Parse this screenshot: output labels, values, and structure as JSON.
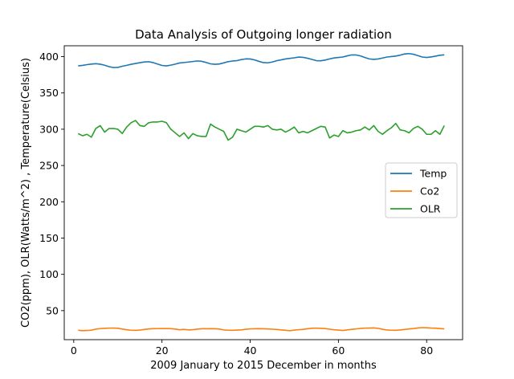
{
  "chart_data": {
    "type": "line",
    "title": "Data Analysis of Outgoing longer radiation",
    "xlabel": "2009 January to 2015 December in months",
    "ylabel": "CO2(ppm), OLR(Watts/m^2) , Temperature(Celsius)",
    "xlim": [
      -2.15,
      88.15
    ],
    "ylim": [
      10,
      415
    ],
    "xticks": [
      0,
      20,
      40,
      60,
      80
    ],
    "yticks": [
      50,
      100,
      150,
      200,
      250,
      300,
      350,
      400
    ],
    "grid": false,
    "legend_position": "center-right",
    "series": [
      {
        "name": "Temp",
        "color": "#1f77b4",
        "x": [
          1,
          2,
          3,
          4,
          5,
          6,
          7,
          8,
          9,
          10,
          11,
          12,
          13,
          14,
          15,
          16,
          17,
          18,
          19,
          20,
          21,
          22,
          23,
          24,
          25,
          26,
          27,
          28,
          29,
          30,
          31,
          32,
          33,
          34,
          35,
          36,
          37,
          38,
          39,
          40,
          41,
          42,
          43,
          44,
          45,
          46,
          47,
          48,
          49,
          50,
          51,
          52,
          53,
          54,
          55,
          56,
          57,
          58,
          59,
          60,
          61,
          62,
          63,
          64,
          65,
          66,
          67,
          68,
          69,
          70,
          71,
          72,
          73,
          74,
          75,
          76,
          77,
          78,
          79,
          80,
          81,
          82,
          83,
          84
        ],
        "values": [
          387.3,
          388.0,
          389.0,
          389.8,
          390.3,
          389.6,
          388.2,
          386.2,
          385.0,
          385.2,
          386.8,
          388.0,
          389.5,
          390.6,
          391.7,
          392.7,
          393.0,
          391.8,
          389.8,
          387.9,
          387.3,
          388.3,
          389.7,
          391.3,
          391.9,
          392.6,
          393.3,
          394.1,
          393.6,
          392.0,
          390.1,
          389.5,
          389.9,
          391.4,
          393.1,
          394.0,
          394.5,
          396.0,
          396.9,
          396.8,
          395.5,
          393.5,
          391.8,
          391.5,
          392.6,
          394.4,
          395.6,
          396.8,
          397.6,
          398.4,
          399.4,
          399.0,
          397.8,
          396.2,
          394.5,
          394.3,
          395.3,
          396.9,
          398.2,
          398.9,
          399.5,
          401.1,
          402.4,
          402.3,
          401.0,
          398.8,
          396.9,
          396.3,
          396.8,
          398.1,
          399.5,
          400.1,
          400.8,
          402.1,
          403.7,
          404.2,
          403.3,
          401.4,
          399.5,
          398.9,
          399.6,
          400.7,
          401.9,
          402.5
        ]
      },
      {
        "name": "Co2",
        "color": "#ff7f0e",
        "x": [
          1,
          2,
          3,
          4,
          5,
          6,
          7,
          8,
          9,
          10,
          11,
          12,
          13,
          14,
          15,
          16,
          17,
          18,
          19,
          20,
          21,
          22,
          23,
          24,
          25,
          26,
          27,
          28,
          29,
          30,
          31,
          32,
          33,
          34,
          35,
          36,
          37,
          38,
          39,
          40,
          41,
          42,
          43,
          44,
          45,
          46,
          47,
          48,
          49,
          50,
          51,
          52,
          53,
          54,
          55,
          56,
          57,
          58,
          59,
          60,
          61,
          62,
          63,
          64,
          65,
          66,
          67,
          68,
          69,
          70,
          71,
          72,
          73,
          74,
          75,
          76,
          77,
          78,
          79,
          80,
          81,
          82,
          83,
          84
        ],
        "values": [
          22.9,
          22.4,
          22.6,
          23.1,
          24.5,
          25.2,
          25.6,
          25.9,
          26.0,
          25.7,
          24.6,
          23.6,
          23.0,
          22.8,
          23.2,
          24.0,
          24.7,
          25.1,
          25.2,
          25.3,
          25.3,
          25.1,
          24.6,
          23.6,
          24.2,
          23.4,
          23.8,
          24.5,
          25.0,
          25.0,
          25.1,
          25.0,
          24.6,
          23.4,
          23.0,
          22.9,
          23.2,
          23.5,
          24.3,
          24.8,
          25.0,
          25.1,
          25.0,
          24.7,
          24.4,
          24.0,
          23.5,
          22.9,
          22.3,
          23.2,
          23.7,
          24.2,
          25.0,
          25.7,
          25.9,
          25.6,
          25.3,
          24.4,
          23.6,
          23.2,
          22.7,
          23.5,
          24.2,
          24.8,
          25.4,
          25.9,
          26.0,
          26.2,
          25.6,
          24.3,
          23.3,
          23.0,
          22.9,
          23.3,
          24.0,
          24.7,
          25.3,
          26.1,
          26.6,
          26.4,
          26.0,
          25.8,
          25.3,
          24.9
        ]
      },
      {
        "name": "OLR",
        "color": "#2ca02c",
        "x": [
          1,
          2,
          3,
          4,
          5,
          6,
          7,
          8,
          9,
          10,
          11,
          12,
          13,
          14,
          15,
          16,
          17,
          18,
          19,
          20,
          21,
          22,
          23,
          24,
          25,
          26,
          27,
          28,
          29,
          30,
          31,
          32,
          33,
          34,
          35,
          36,
          37,
          38,
          39,
          40,
          41,
          42,
          43,
          44,
          45,
          46,
          47,
          48,
          49,
          50,
          51,
          52,
          53,
          54,
          55,
          56,
          57,
          58,
          59,
          60,
          61,
          62,
          63,
          64,
          65,
          66,
          67,
          68,
          69,
          70,
          71,
          72,
          73,
          74,
          75,
          76,
          77,
          78,
          79,
          80,
          81,
          82,
          83,
          84
        ],
        "values": [
          294,
          291,
          293,
          289,
          301,
          305,
          296,
          301,
          301,
          300,
          294,
          303,
          309,
          312,
          305,
          304,
          309,
          310,
          310,
          311,
          309,
          300,
          295,
          290,
          295,
          287,
          294,
          291,
          290,
          290,
          307,
          303,
          300,
          297,
          285,
          289,
          300,
          298,
          296,
          300,
          304,
          304,
          303,
          305,
          300,
          299,
          300,
          296,
          299,
          303,
          295,
          297,
          295,
          298,
          301,
          304,
          303,
          288,
          292,
          290,
          298,
          295,
          296,
          298,
          299,
          303,
          299,
          305,
          297,
          293,
          298,
          302,
          308,
          299,
          298,
          295,
          301,
          304,
          300,
          293,
          293,
          298,
          293,
          305
        ]
      }
    ]
  }
}
